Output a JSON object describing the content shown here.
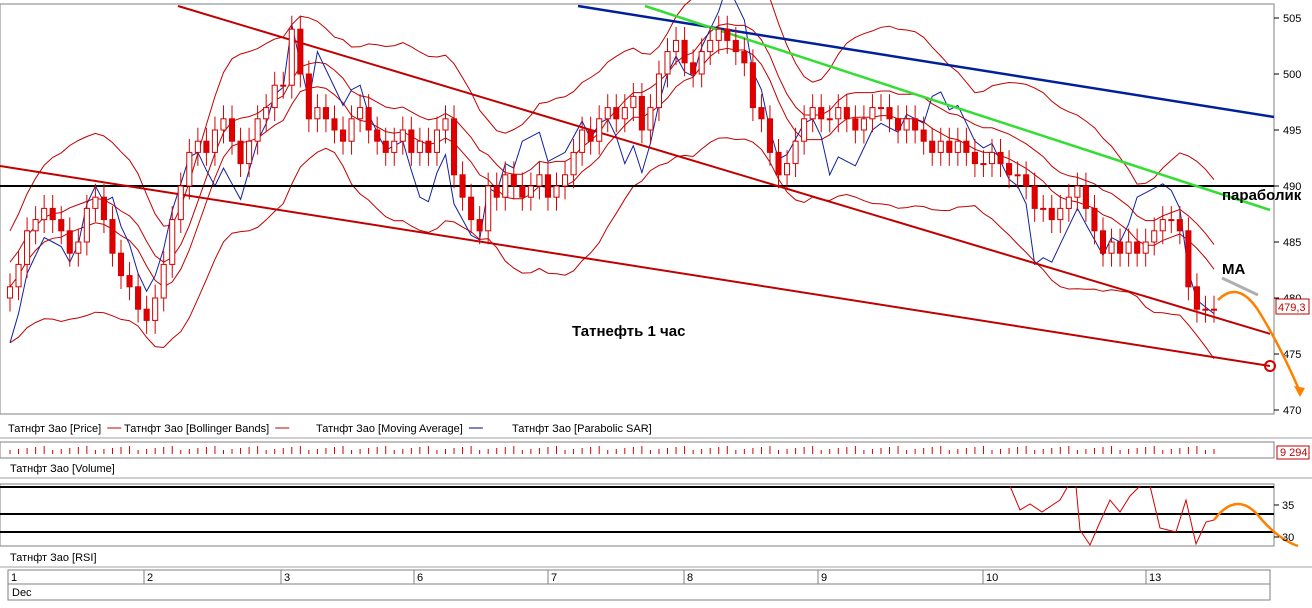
{
  "chart_data": {
    "type": "candlestick",
    "annotation_title": "Татнефть    1 час",
    "annotation_parabolic": "параболик",
    "annotation_ma": "MA",
    "last_price_label": "479,3",
    "y_ticks": [
      "505",
      "500",
      "495",
      "490",
      "485",
      "480",
      "475",
      "470"
    ],
    "ylim": [
      470,
      506
    ],
    "legend": [
      {
        "label": "Татнфт Зао [Price]",
        "color": "#d40000"
      },
      {
        "label": "Татнфт Зао [Bollinger Bands]",
        "color": "#c00000"
      },
      {
        "label": "Татнфт Зао [Moving Average]",
        "color": "#c00000"
      },
      {
        "label": "Татнфт Зао [Parabolic SAR]",
        "color": "#00008b"
      }
    ],
    "volume_label": "Татнфт Зао [Volume]",
    "volume_value": "9 294",
    "rsi_label": "Татнфт Зао [RSI]",
    "rsi_ticks": [
      "35",
      "30"
    ],
    "dates": [
      "1",
      "2",
      "3",
      "6",
      "7",
      "8",
      "9",
      "10",
      "13"
    ],
    "month_label": "Dec",
    "candle_closes": [
      481,
      483,
      486,
      487,
      488,
      487,
      486,
      484,
      485,
      488,
      489,
      487,
      484,
      482,
      481,
      479,
      478,
      480,
      483,
      487,
      490,
      493,
      494,
      493,
      495,
      496,
      494,
      492,
      494,
      496,
      497,
      499,
      499,
      504,
      500,
      496,
      497,
      496,
      495,
      494,
      496,
      497,
      495,
      494,
      493,
      494,
      495,
      493,
      494,
      493,
      495,
      496,
      491,
      489,
      487,
      486,
      490,
      489,
      491,
      490,
      489,
      490,
      491,
      489,
      490,
      491,
      493,
      495,
      494,
      496,
      497,
      496,
      497,
      498,
      495,
      497,
      500,
      502,
      503,
      501,
      500,
      502,
      503,
      504,
      503,
      502,
      501,
      497,
      496,
      493,
      491,
      492,
      494,
      496,
      497,
      496,
      496,
      497,
      496,
      495,
      496,
      497,
      497,
      496,
      495,
      496,
      495,
      494,
      493,
      494,
      493,
      494,
      493,
      492,
      492,
      493,
      492,
      491,
      491,
      490,
      488,
      488,
      487,
      488,
      489,
      490,
      488,
      486,
      484,
      485,
      484,
      485,
      484,
      485,
      486,
      487,
      487,
      486,
      481,
      479,
      479,
      479
    ]
  }
}
